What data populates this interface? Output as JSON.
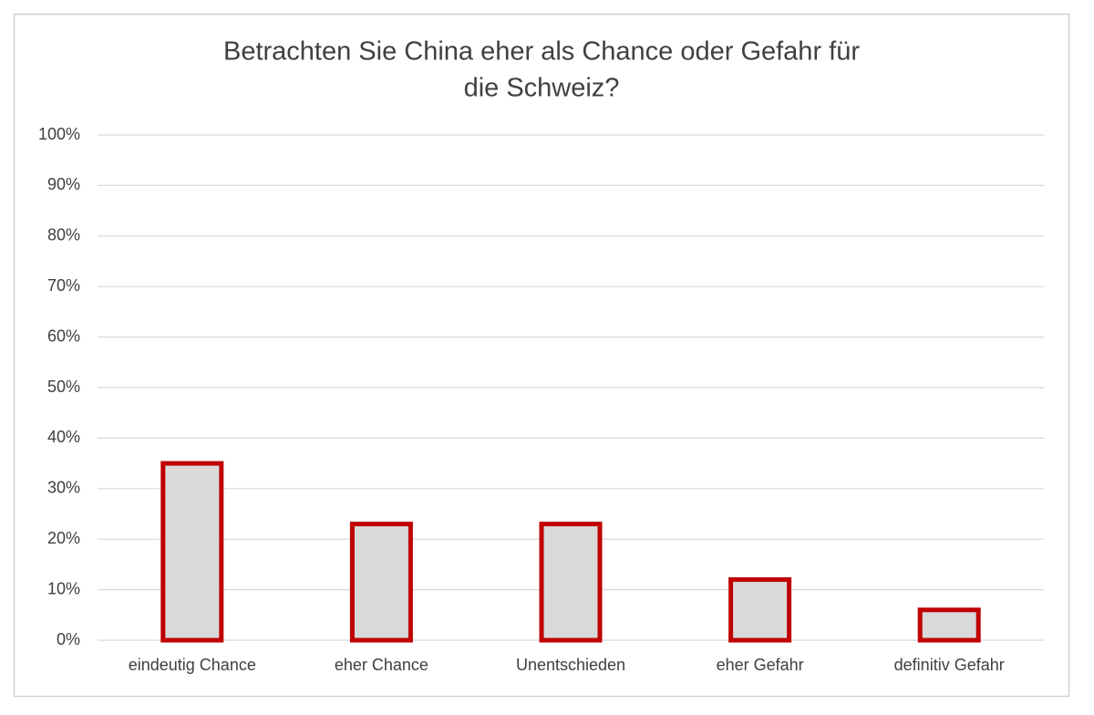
{
  "chart_data": {
    "type": "bar",
    "title": [
      "Betrachten Sie China eher als Chance oder Gefahr für",
      "die Schweiz?"
    ],
    "categories": [
      "eindeutig Chance",
      "eher Chance",
      "Unentschieden",
      "eher Gefahr",
      "definitiv Gefahr"
    ],
    "values": [
      35,
      23,
      23,
      12,
      6
    ],
    "color": "#d9d9d9",
    "edge_color": "#c00000",
    "ylim": [
      0,
      100
    ],
    "yticks": [
      {
        "value": 0,
        "label": "0%"
      },
      {
        "value": 10,
        "label": "10%"
      },
      {
        "value": 20,
        "label": "20%"
      },
      {
        "value": 30,
        "label": "30%"
      },
      {
        "value": 40,
        "label": "40%"
      },
      {
        "value": 50,
        "label": "50%"
      },
      {
        "value": 60,
        "label": "60%"
      },
      {
        "value": 70,
        "label": "70%"
      },
      {
        "value": 80,
        "label": "80%"
      },
      {
        "value": 90,
        "label": "90%"
      },
      {
        "value": 100,
        "label": "100%"
      }
    ],
    "grid": true
  }
}
